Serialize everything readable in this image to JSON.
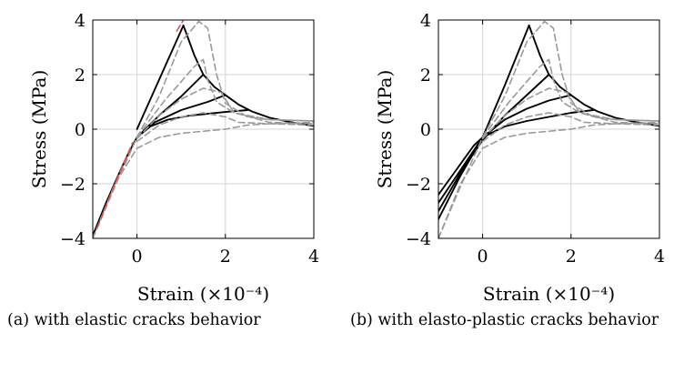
{
  "chart_data": [
    {
      "type": "line",
      "id": "a",
      "xlabel": "Strain (×10⁻⁴)",
      "ylabel": "Stress (MPa)",
      "xlim": [
        -1,
        4
      ],
      "ylim": [
        -4,
        4
      ],
      "xticks": [
        "0",
        "2",
        "4"
      ],
      "xtick_values": [
        0,
        2,
        4
      ],
      "yticks": [
        "−4",
        "−2",
        "0",
        "2",
        "4"
      ],
      "ytick_values": [
        -4,
        -2,
        0,
        2,
        4
      ],
      "grid": true,
      "caption": "(a) with elastic cracks behavior",
      "series": [
        {
          "style": "solid",
          "color": "#000000",
          "points": [
            [
              -1,
              -3.9
            ],
            [
              -0.7,
              -2.7
            ],
            [
              -0.4,
              -1.6
            ],
            [
              -0.2,
              -0.9
            ],
            [
              0,
              -0.3
            ],
            [
              0.3,
              0.1
            ],
            [
              0.7,
              0.35
            ],
            [
              1.2,
              0.5
            ],
            [
              2.0,
              0.63
            ],
            [
              2.5,
              0.7
            ]
          ]
        },
        {
          "style": "solid",
          "color": "#000000",
          "points": [
            [
              0,
              -0.3
            ],
            [
              0.4,
              0.25
            ],
            [
              1.0,
              0.7
            ],
            [
              1.6,
              1.0
            ],
            [
              2.0,
              1.25
            ]
          ]
        },
        {
          "style": "solid",
          "color": "#000000",
          "points": [
            [
              0,
              -0.3
            ],
            [
              0.5,
              0.5
            ],
            [
              1.0,
              1.2
            ],
            [
              1.5,
              2.0
            ]
          ]
        },
        {
          "style": "solid",
          "color": "#000000",
          "points": [
            [
              0,
              0
            ],
            [
              1.05,
              3.8
            ]
          ]
        },
        {
          "style": "solid",
          "color": "#000000",
          "points": [
            [
              1.05,
              3.8
            ],
            [
              1.3,
              2.7
            ],
            [
              1.5,
              2.0
            ],
            [
              1.75,
              1.55
            ],
            [
              2.0,
              1.25
            ],
            [
              2.3,
              0.9
            ],
            [
              2.6,
              0.65
            ],
            [
              3.0,
              0.42
            ],
            [
              3.5,
              0.25
            ],
            [
              4.0,
              0.12
            ]
          ]
        },
        {
          "style": "dashed",
          "color": "#999999",
          "points": [
            [
              -1,
              -4
            ],
            [
              -0.5,
              -2.1
            ],
            [
              0,
              -0.3
            ],
            [
              0.5,
              1.2
            ],
            [
              1.0,
              3.2
            ],
            [
              1.4,
              3.95
            ],
            [
              1.6,
              3.7
            ],
            [
              1.8,
              2.0
            ],
            [
              2.0,
              0.95
            ],
            [
              2.5,
              0.45
            ],
            [
              3.0,
              0.35
            ],
            [
              4.0,
              0.3
            ]
          ]
        },
        {
          "style": "dashed",
          "color": "#999999",
          "points": [
            [
              0,
              -0.3
            ],
            [
              0.6,
              1.0
            ],
            [
              1.3,
              2.3
            ],
            [
              1.5,
              2.55
            ],
            [
              1.6,
              1.8
            ],
            [
              1.8,
              1.0
            ],
            [
              2.2,
              0.6
            ],
            [
              3.0,
              0.25
            ],
            [
              4.0,
              0.2
            ]
          ]
        },
        {
          "style": "dashed",
          "color": "#999999",
          "points": [
            [
              0,
              -0.35
            ],
            [
              0.5,
              0.5
            ],
            [
              1.0,
              1.1
            ],
            [
              1.5,
              1.5
            ],
            [
              1.9,
              1.35
            ],
            [
              2.2,
              0.6
            ],
            [
              3.0,
              0.35
            ],
            [
              4.0,
              0.3
            ]
          ]
        },
        {
          "style": "dashed",
          "color": "#999999",
          "points": [
            [
              0,
              -0.45
            ],
            [
              0.5,
              0.15
            ],
            [
              1.0,
              0.45
            ],
            [
              1.5,
              0.6
            ],
            [
              2.0,
              0.45
            ],
            [
              2.3,
              0.25
            ],
            [
              3.0,
              0.2
            ],
            [
              4.0,
              0.15
            ]
          ]
        },
        {
          "style": "dashed",
          "color": "#999999",
          "points": [
            [
              -1,
              -4
            ],
            [
              -0.5,
              -2.0
            ],
            [
              0,
              -0.7
            ],
            [
              0.5,
              -0.3
            ],
            [
              1.0,
              -0.15
            ],
            [
              2.0,
              0.0
            ],
            [
              2.5,
              0.15
            ],
            [
              3.0,
              0.2
            ],
            [
              4.0,
              0.25
            ]
          ]
        },
        {
          "style": "dashed",
          "color": "#d9534f",
          "points": [
            [
              -0.9,
              -3.6
            ],
            [
              -0.5,
              -2.0
            ],
            [
              -0.1,
              -0.5
            ]
          ]
        },
        {
          "style": "dashed",
          "color": "#d9534f",
          "points": [
            [
              0.9,
              3.6
            ],
            [
              1.05,
              4.0
            ]
          ]
        }
      ]
    },
    {
      "type": "line",
      "id": "b",
      "xlabel": "Strain (×10⁻⁴)",
      "ylabel": "Stress (MPa)",
      "xlim": [
        -1,
        4
      ],
      "ylim": [
        -4,
        4
      ],
      "xticks": [
        "0",
        "2",
        "4"
      ],
      "xtick_values": [
        0,
        2,
        4
      ],
      "yticks": [
        "−4",
        "−2",
        "0",
        "2",
        "4"
      ],
      "ytick_values": [
        -4,
        -2,
        0,
        2,
        4
      ],
      "grid": true,
      "caption": "(b) with elasto-plastic cracks behavior",
      "series": [
        {
          "style": "solid",
          "color": "#000000",
          "points": [
            [
              -1,
              -2.4
            ],
            [
              -0.6,
              -1.5
            ],
            [
              -0.2,
              -0.6
            ],
            [
              0,
              -0.3
            ],
            [
              0.5,
              0.1
            ],
            [
              1.0,
              0.3
            ],
            [
              1.5,
              0.45
            ],
            [
              2.0,
              0.6
            ],
            [
              2.5,
              0.7
            ]
          ]
        },
        {
          "style": "solid",
          "color": "#000000",
          "points": [
            [
              -1,
              -2.7
            ],
            [
              -0.5,
              -1.5
            ],
            [
              0,
              -0.3
            ],
            [
              0.5,
              0.35
            ],
            [
              1.0,
              0.75
            ],
            [
              1.5,
              1.05
            ],
            [
              2.0,
              1.25
            ]
          ]
        },
        {
          "style": "solid",
          "color": "#000000",
          "points": [
            [
              -1,
              -3.0
            ],
            [
              -0.5,
              -1.6
            ],
            [
              0,
              -0.4
            ],
            [
              0.5,
              0.5
            ],
            [
              1.0,
              1.25
            ],
            [
              1.5,
              2.0
            ]
          ]
        },
        {
          "style": "solid",
          "color": "#000000",
          "points": [
            [
              -1,
              -3.3
            ],
            [
              -0.5,
              -1.7
            ],
            [
              0,
              -0.3
            ],
            [
              0.5,
              1.6
            ],
            [
              1.05,
              3.8
            ]
          ]
        },
        {
          "style": "solid",
          "color": "#000000",
          "points": [
            [
              1.05,
              3.8
            ],
            [
              1.3,
              2.7
            ],
            [
              1.5,
              2.0
            ],
            [
              1.75,
              1.55
            ],
            [
              2.0,
              1.25
            ],
            [
              2.3,
              0.9
            ],
            [
              2.6,
              0.65
            ],
            [
              3.0,
              0.42
            ],
            [
              3.5,
              0.25
            ],
            [
              4.0,
              0.12
            ]
          ]
        },
        {
          "style": "dashed",
          "color": "#999999",
          "points": [
            [
              -1,
              -4
            ],
            [
              -0.5,
              -2.1
            ],
            [
              0,
              -0.3
            ],
            [
              0.5,
              1.2
            ],
            [
              1.0,
              3.2
            ],
            [
              1.4,
              3.95
            ],
            [
              1.6,
              3.7
            ],
            [
              1.8,
              2.0
            ],
            [
              2.0,
              0.95
            ],
            [
              2.5,
              0.45
            ],
            [
              3.0,
              0.35
            ],
            [
              4.0,
              0.3
            ]
          ]
        },
        {
          "style": "dashed",
          "color": "#999999",
          "points": [
            [
              0,
              -0.3
            ],
            [
              0.6,
              1.0
            ],
            [
              1.3,
              2.3
            ],
            [
              1.5,
              2.55
            ],
            [
              1.6,
              1.8
            ],
            [
              1.8,
              1.0
            ],
            [
              2.2,
              0.6
            ],
            [
              3.0,
              0.25
            ],
            [
              4.0,
              0.2
            ]
          ]
        },
        {
          "style": "dashed",
          "color": "#999999",
          "points": [
            [
              0,
              -0.35
            ],
            [
              0.5,
              0.5
            ],
            [
              1.0,
              1.1
            ],
            [
              1.5,
              1.5
            ],
            [
              1.9,
              1.35
            ],
            [
              2.2,
              0.6
            ],
            [
              3.0,
              0.35
            ],
            [
              4.0,
              0.3
            ]
          ]
        },
        {
          "style": "dashed",
          "color": "#999999",
          "points": [
            [
              0,
              -0.45
            ],
            [
              0.5,
              0.15
            ],
            [
              1.0,
              0.45
            ],
            [
              1.5,
              0.6
            ],
            [
              2.0,
              0.45
            ],
            [
              2.3,
              0.25
            ],
            [
              3.0,
              0.2
            ],
            [
              4.0,
              0.15
            ]
          ]
        },
        {
          "style": "dashed",
          "color": "#999999",
          "points": [
            [
              -1,
              -4
            ],
            [
              -0.5,
              -2.0
            ],
            [
              0,
              -0.7
            ],
            [
              0.5,
              -0.3
            ],
            [
              1.0,
              -0.15
            ],
            [
              2.0,
              0.0
            ],
            [
              2.5,
              0.15
            ],
            [
              3.0,
              0.2
            ],
            [
              4.0,
              0.25
            ]
          ]
        }
      ]
    }
  ]
}
